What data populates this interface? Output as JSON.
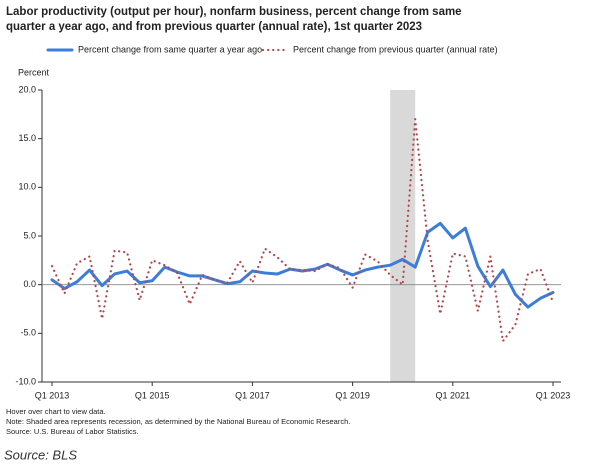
{
  "chart_data": {
    "type": "line",
    "title": "Labor productivity (output per hour), nonfarm business, percent change from same quarter a year ago, and from previous quarter (annual rate), 1st quarter 2023",
    "y_label": "Percent",
    "categories": [
      "Q1 2013",
      null,
      null,
      null,
      null,
      null,
      null,
      null,
      "Q1 2015",
      null,
      null,
      null,
      null,
      null,
      null,
      null,
      "Q1 2017",
      null,
      null,
      null,
      null,
      null,
      null,
      null,
      "Q1 2019",
      null,
      null,
      null,
      null,
      null,
      null,
      null,
      "Q1 2021",
      null,
      null,
      null,
      null,
      null,
      null,
      null,
      "Q1 2023"
    ],
    "series": [
      {
        "name": "Percent change from same quarter a year ago",
        "color": "#3b7dd8",
        "style": "solid",
        "values": [
          0.5,
          -0.4,
          0.3,
          1.5,
          -0.1,
          1.1,
          1.4,
          0.2,
          0.4,
          1.8,
          1.3,
          0.9,
          0.9,
          0.5,
          0.1,
          0.3,
          1.4,
          1.2,
          1.1,
          1.6,
          1.4,
          1.6,
          2.1,
          1.5,
          1.0,
          1.5,
          1.8,
          2.0,
          2.6,
          1.8,
          5.4,
          6.3,
          4.8,
          5.8,
          1.9,
          -0.2,
          1.5,
          -1.0,
          -2.3,
          -1.4,
          -0.8
        ]
      },
      {
        "name": "Percent change from previous quarter (annual rate)",
        "color": "#b5474b",
        "style": "dotted",
        "values": [
          1.9,
          -0.9,
          2.2,
          2.9,
          -3.5,
          3.5,
          3.3,
          -1.6,
          2.5,
          2.0,
          1.2,
          -2.0,
          1.0,
          0.5,
          0.2,
          2.4,
          0.2,
          3.7,
          2.8,
          1.6,
          1.5,
          1.4,
          2.1,
          1.7,
          -0.3,
          3.1,
          2.4,
          1.0,
          0.0,
          17.0,
          4.5,
          -3.0,
          3.2,
          2.9,
          -2.7,
          2.9,
          -5.8,
          -4.1,
          1.1,
          1.6,
          -1.8
        ]
      }
    ],
    "recession": {
      "from": 27,
      "to": 29
    },
    "ylim": [
      -10,
      20
    ],
    "yticks": [
      {
        "value": -10,
        "label": "-10.0"
      },
      {
        "value": -5,
        "label": "-5.0"
      },
      {
        "value": 0,
        "label": "0.0"
      },
      {
        "value": 5,
        "label": "5.0"
      },
      {
        "value": 10,
        "label": "10.0"
      },
      {
        "value": 15,
        "label": "15.0"
      },
      {
        "value": 20,
        "label": "20.0"
      }
    ],
    "notes": [
      "Hover over chart to view data.",
      "Note: Shaded area represents recession, as determined by the National Bureau of Economic Research.",
      "Source: U.S. Bureau of Labor Statistics."
    ],
    "source": "Source: BLS"
  }
}
